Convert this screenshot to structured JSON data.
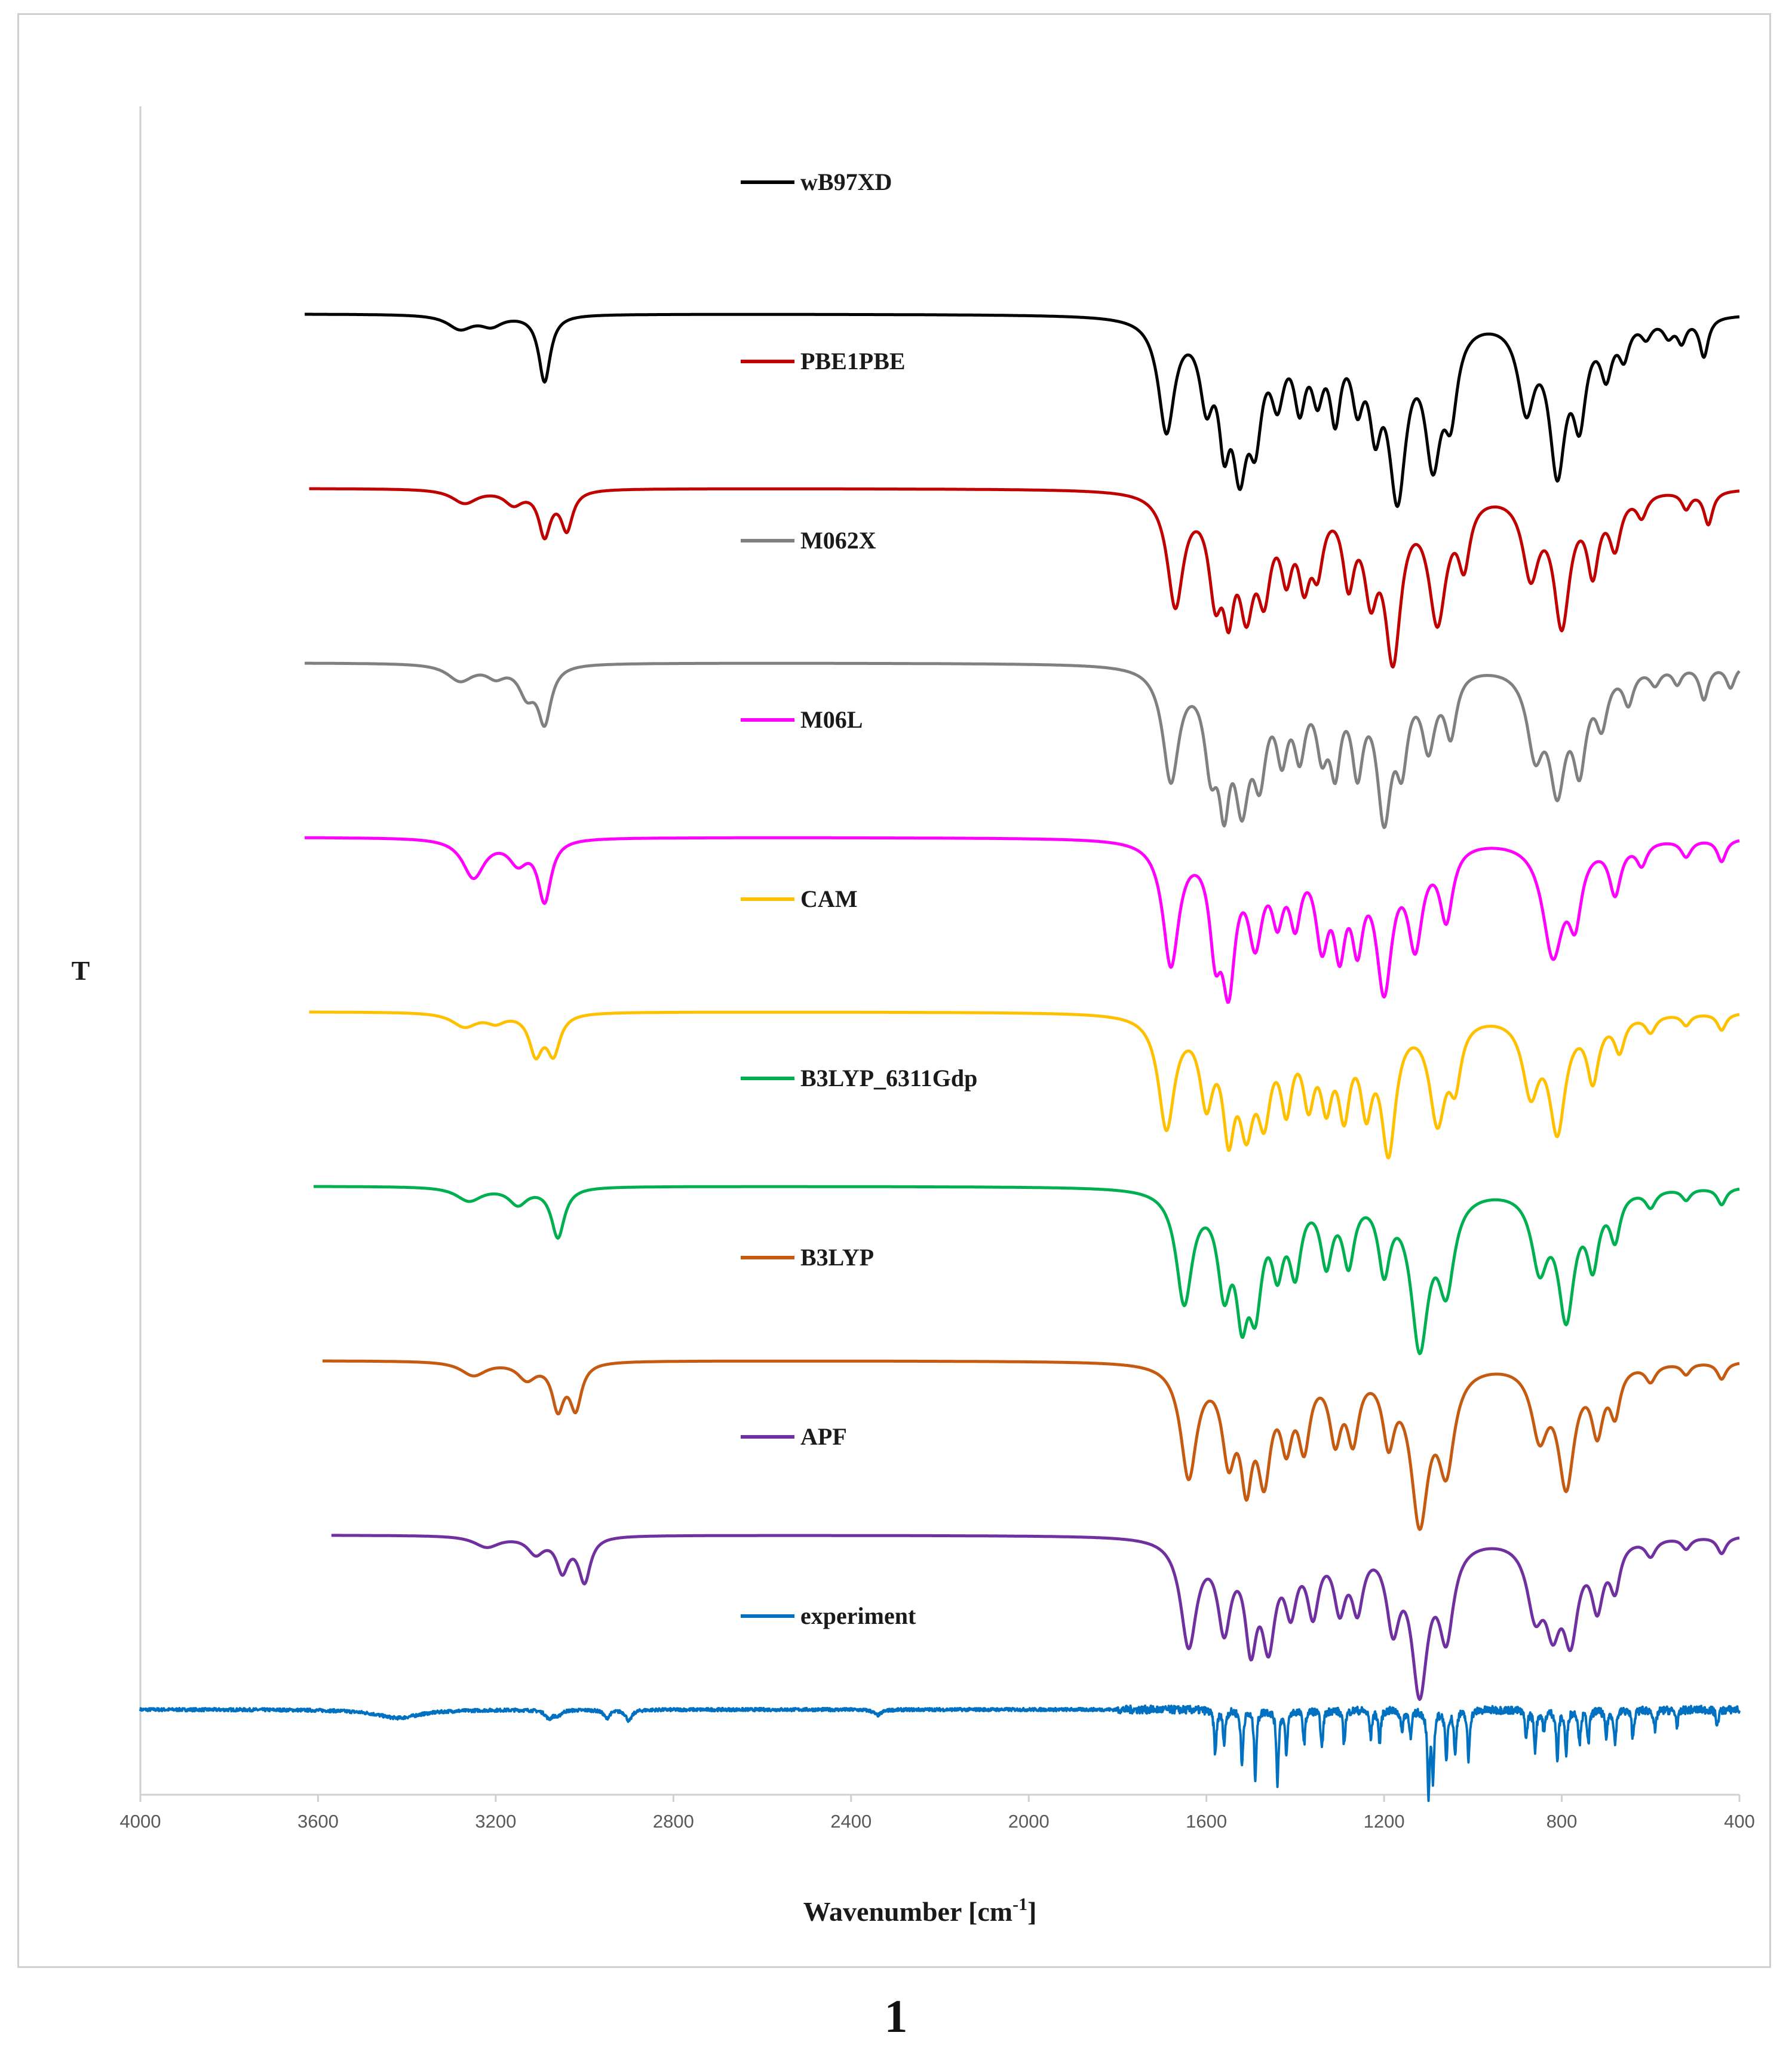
{
  "figure_label": "1",
  "chart_data": {
    "type": "line",
    "title": "",
    "xlabel": "Wavenumber [cm",
    "xlabel_sup": "-1",
    "xlabel_close": "]",
    "ylabel": "T",
    "xlim": [
      4000,
      400
    ],
    "x_ticks": [
      4000,
      3600,
      3200,
      2800,
      2400,
      2000,
      1600,
      1200,
      800,
      400
    ],
    "grid": false,
    "legend_placement": "inline, centered, under each curve",
    "series": [
      {
        "name": "wB97XD",
        "color": "#000000",
        "baseline": 8.3,
        "x_start": 3630,
        "x_peak_ch": 3090,
        "peaks": [
          [
            3280,
            0.25,
            35
          ],
          [
            3210,
            0.18,
            30
          ],
          [
            3090,
            1.2,
            16
          ],
          [
            1690,
            2.0,
            22
          ],
          [
            1600,
            1.3,
            18
          ],
          [
            1560,
            1.7,
            15
          ],
          [
            1525,
            2.3,
            20
          ],
          [
            1490,
            1.7,
            18
          ],
          [
            1440,
            1.2,
            18
          ],
          [
            1390,
            1.3,
            16
          ],
          [
            1350,
            1.1,
            16
          ],
          [
            1310,
            1.5,
            15
          ],
          [
            1260,
            1.2,
            16
          ],
          [
            1220,
            1.5,
            16
          ],
          [
            1170,
            3.0,
            24
          ],
          [
            1090,
            2.3,
            22
          ],
          [
            1050,
            1.4,
            18
          ],
          [
            880,
            1.5,
            22
          ],
          [
            810,
            2.6,
            22
          ],
          [
            760,
            1.6,
            18
          ],
          [
            700,
            0.9,
            16
          ],
          [
            660,
            0.6,
            14
          ],
          [
            610,
            0.3,
            14
          ],
          [
            560,
            0.3,
            14
          ],
          [
            530,
            0.4,
            12
          ],
          [
            480,
            0.7,
            12
          ]
        ]
      },
      {
        "name": "PBE1PBE",
        "color": "#c00000",
        "baseline": 7.3,
        "x_start": 3620,
        "peaks": [
          [
            3270,
            0.25,
            35
          ],
          [
            3160,
            0.25,
            25
          ],
          [
            3090,
            0.8,
            16
          ],
          [
            3040,
            0.7,
            16
          ],
          [
            1670,
            2.0,
            22
          ],
          [
            1580,
            1.6,
            18
          ],
          [
            1550,
            1.6,
            15
          ],
          [
            1510,
            1.8,
            20
          ],
          [
            1470,
            1.5,
            18
          ],
          [
            1420,
            1.2,
            16
          ],
          [
            1380,
            1.3,
            16
          ],
          [
            1350,
            1.1,
            16
          ],
          [
            1280,
            1.4,
            16
          ],
          [
            1230,
            1.5,
            18
          ],
          [
            1180,
            2.8,
            22
          ],
          [
            1080,
            2.2,
            24
          ],
          [
            1020,
            1.1,
            16
          ],
          [
            870,
            1.4,
            22
          ],
          [
            800,
            2.3,
            22
          ],
          [
            730,
            1.3,
            16
          ],
          [
            680,
            0.9,
            16
          ],
          [
            620,
            0.4,
            14
          ],
          [
            520,
            0.3,
            12
          ],
          [
            470,
            0.6,
            12
          ]
        ]
      },
      {
        "name": "M062X",
        "color": "#808080",
        "baseline": 6.3,
        "x_start": 3630,
        "peaks": [
          [
            3280,
            0.3,
            35
          ],
          [
            3200,
            0.2,
            25
          ],
          [
            3130,
            0.5,
            22
          ],
          [
            3090,
            1.0,
            18
          ],
          [
            1680,
            2.0,
            22
          ],
          [
            1590,
            1.5,
            18
          ],
          [
            1560,
            1.9,
            15
          ],
          [
            1520,
            2.1,
            20
          ],
          [
            1480,
            1.6,
            18
          ],
          [
            1430,
            1.3,
            16
          ],
          [
            1390,
            1.3,
            16
          ],
          [
            1340,
            1.2,
            16
          ],
          [
            1310,
            1.5,
            15
          ],
          [
            1260,
            1.6,
            16
          ],
          [
            1200,
            2.5,
            20
          ],
          [
            1160,
            1.4,
            16
          ],
          [
            1100,
            1.3,
            18
          ],
          [
            1050,
            1.1,
            16
          ],
          [
            860,
            1.4,
            22
          ],
          [
            810,
            2.0,
            22
          ],
          [
            760,
            1.6,
            18
          ],
          [
            710,
            0.9,
            16
          ],
          [
            650,
            0.6,
            14
          ],
          [
            590,
            0.3,
            14
          ],
          [
            540,
            0.3,
            12
          ],
          [
            480,
            0.6,
            12
          ],
          [
            420,
            0.4,
            12
          ]
        ]
      },
      {
        "name": "M06L",
        "color": "#ff00ff",
        "baseline": 5.3,
        "x_start": 3630,
        "peaks": [
          [
            3250,
            0.7,
            30
          ],
          [
            3150,
            0.4,
            25
          ],
          [
            3090,
            1.1,
            18
          ],
          [
            1680,
            2.2,
            22
          ],
          [
            1580,
            1.6,
            16
          ],
          [
            1550,
            2.3,
            18
          ],
          [
            1490,
            1.6,
            20
          ],
          [
            1440,
            1.1,
            16
          ],
          [
            1400,
            1.2,
            16
          ],
          [
            1340,
            1.6,
            18
          ],
          [
            1300,
            1.6,
            16
          ],
          [
            1260,
            1.5,
            16
          ],
          [
            1200,
            2.5,
            22
          ],
          [
            1130,
            1.7,
            20
          ],
          [
            1060,
            1.3,
            18
          ],
          [
            820,
            2.0,
            28
          ],
          [
            770,
            1.2,
            18
          ],
          [
            680,
            0.9,
            16
          ],
          [
            620,
            0.4,
            14
          ],
          [
            520,
            0.3,
            14
          ],
          [
            440,
            0.4,
            12
          ]
        ]
      },
      {
        "name": "CAM",
        "color": "#ffc000",
        "baseline": 4.3,
        "x_start": 3620,
        "peaks": [
          [
            3270,
            0.25,
            35
          ],
          [
            3200,
            0.15,
            25
          ],
          [
            3110,
            0.7,
            18
          ],
          [
            3070,
            0.7,
            18
          ],
          [
            1690,
            2.0,
            22
          ],
          [
            1600,
            1.4,
            18
          ],
          [
            1550,
            1.8,
            16
          ],
          [
            1510,
            1.7,
            20
          ],
          [
            1470,
            1.5,
            18
          ],
          [
            1420,
            1.4,
            16
          ],
          [
            1370,
            1.3,
            16
          ],
          [
            1330,
            1.3,
            16
          ],
          [
            1290,
            1.5,
            16
          ],
          [
            1240,
            1.4,
            16
          ],
          [
            1190,
            2.3,
            20
          ],
          [
            1080,
            1.8,
            22
          ],
          [
            1040,
            1.0,
            16
          ],
          [
            870,
            1.3,
            22
          ],
          [
            810,
            2.0,
            22
          ],
          [
            730,
            1.1,
            16
          ],
          [
            670,
            0.6,
            14
          ],
          [
            600,
            0.3,
            14
          ],
          [
            520,
            0.2,
            12
          ],
          [
            440,
            0.3,
            12
          ]
        ]
      },
      {
        "name": "B3LYP_6311Gdp",
        "color": "#00b050",
        "baseline": 3.3,
        "x_start": 3610,
        "peaks": [
          [
            3260,
            0.25,
            35
          ],
          [
            3150,
            0.3,
            25
          ],
          [
            3060,
            0.9,
            18
          ],
          [
            1650,
            2.0,
            22
          ],
          [
            1560,
            1.6,
            18
          ],
          [
            1520,
            1.8,
            16
          ],
          [
            1490,
            1.8,
            18
          ],
          [
            1440,
            1.2,
            16
          ],
          [
            1400,
            1.3,
            16
          ],
          [
            1330,
            1.2,
            16
          ],
          [
            1280,
            1.2,
            16
          ],
          [
            1200,
            1.3,
            16
          ],
          [
            1120,
            2.7,
            24
          ],
          [
            1060,
            1.6,
            22
          ],
          [
            850,
            1.3,
            22
          ],
          [
            790,
            2.2,
            22
          ],
          [
            730,
            1.2,
            16
          ],
          [
            680,
            0.8,
            14
          ],
          [
            600,
            0.3,
            14
          ],
          [
            520,
            0.2,
            12
          ],
          [
            440,
            0.3,
            12
          ]
        ]
      },
      {
        "name": "B3LYP",
        "color": "#c55a11",
        "baseline": 2.3,
        "x_start": 3590,
        "peaks": [
          [
            3250,
            0.25,
            35
          ],
          [
            3130,
            0.3,
            25
          ],
          [
            3060,
            0.8,
            16
          ],
          [
            3020,
            0.8,
            16
          ],
          [
            1640,
            2.0,
            22
          ],
          [
            1550,
            1.5,
            18
          ],
          [
            1510,
            1.8,
            16
          ],
          [
            1470,
            1.8,
            18
          ],
          [
            1420,
            1.2,
            16
          ],
          [
            1380,
            1.3,
            16
          ],
          [
            1310,
            1.2,
            16
          ],
          [
            1270,
            1.2,
            16
          ],
          [
            1190,
            1.2,
            16
          ],
          [
            1120,
            2.7,
            24
          ],
          [
            1060,
            1.7,
            22
          ],
          [
            850,
            1.2,
            22
          ],
          [
            790,
            2.1,
            22
          ],
          [
            720,
            1.1,
            16
          ],
          [
            680,
            0.8,
            14
          ],
          [
            600,
            0.3,
            14
          ],
          [
            520,
            0.2,
            12
          ],
          [
            440,
            0.3,
            12
          ]
        ]
      },
      {
        "name": "APF",
        "color": "#7030a0",
        "baseline": 1.3,
        "x_start": 3570,
        "peaks": [
          [
            3220,
            0.2,
            35
          ],
          [
            3110,
            0.3,
            22
          ],
          [
            3050,
            0.6,
            16
          ],
          [
            3000,
            0.8,
            16
          ],
          [
            1640,
            1.9,
            22
          ],
          [
            1560,
            1.5,
            18
          ],
          [
            1500,
            1.7,
            16
          ],
          [
            1460,
            1.7,
            18
          ],
          [
            1410,
            1.1,
            16
          ],
          [
            1360,
            1.2,
            16
          ],
          [
            1300,
            1.1,
            16
          ],
          [
            1260,
            1.1,
            16
          ],
          [
            1180,
            1.4,
            18
          ],
          [
            1120,
            2.6,
            22
          ],
          [
            1060,
            1.6,
            20
          ],
          [
            860,
            1.2,
            22
          ],
          [
            820,
            1.3,
            20
          ],
          [
            780,
            1.6,
            20
          ],
          [
            720,
            1.1,
            16
          ],
          [
            680,
            0.8,
            14
          ],
          [
            600,
            0.3,
            14
          ],
          [
            520,
            0.2,
            12
          ],
          [
            440,
            0.3,
            12
          ]
        ]
      },
      {
        "name": "experiment",
        "color": "#0070c0",
        "baseline": 0.3,
        "x_start": 4000,
        "peaks": [
          [
            3420,
            0.15,
            60
          ],
          [
            3080,
            0.15,
            10
          ],
          [
            3060,
            0.1,
            8
          ],
          [
            2950,
            0.15,
            8
          ],
          [
            2900,
            0.2,
            8
          ],
          [
            2340,
            0.1,
            10
          ],
          [
            1580,
            0.8,
            3
          ],
          [
            1560,
            0.6,
            3
          ],
          [
            1520,
            1.0,
            3
          ],
          [
            1490,
            1.2,
            3
          ],
          [
            1440,
            1.3,
            3
          ],
          [
            1420,
            0.8,
            3
          ],
          [
            1380,
            0.6,
            3
          ],
          [
            1340,
            0.7,
            3
          ],
          [
            1290,
            0.6,
            3
          ],
          [
            1230,
            0.5,
            3
          ],
          [
            1210,
            0.6,
            3
          ],
          [
            1160,
            0.4,
            3
          ],
          [
            1140,
            0.5,
            3
          ],
          [
            1100,
            1.5,
            3
          ],
          [
            1090,
            1.2,
            3
          ],
          [
            1060,
            0.9,
            3
          ],
          [
            1040,
            0.8,
            3
          ],
          [
            1010,
            0.9,
            3
          ],
          [
            880,
            0.5,
            3
          ],
          [
            860,
            0.7,
            3
          ],
          [
            840,
            0.4,
            3
          ],
          [
            810,
            0.9,
            3
          ],
          [
            790,
            0.8,
            3
          ],
          [
            760,
            0.6,
            3
          ],
          [
            740,
            0.6,
            3
          ],
          [
            700,
            0.5,
            3
          ],
          [
            680,
            0.6,
            3
          ],
          [
            640,
            0.5,
            3
          ],
          [
            590,
            0.4,
            3
          ],
          [
            540,
            0.3,
            3
          ],
          [
            450,
            0.3,
            3
          ]
        ]
      }
    ]
  }
}
